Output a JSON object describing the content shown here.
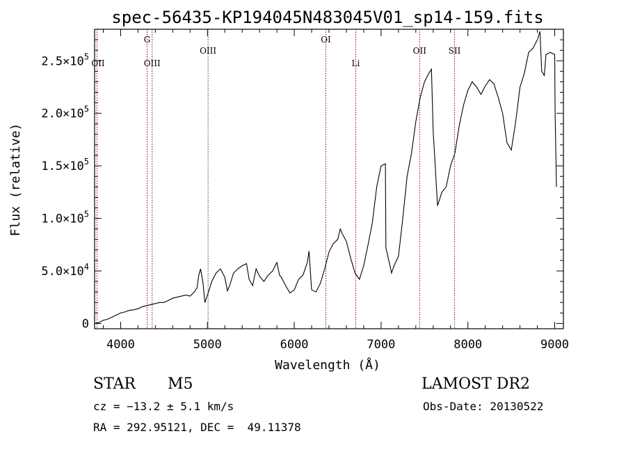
{
  "chart_data": {
    "type": "line",
    "title": "spec-56435-KP194045N483045V01_sp14-159.fits",
    "xlabel": "Wavelength (Å)",
    "ylabel": "Flux (relative)",
    "xlim": [
      3700,
      9100
    ],
    "ylim": [
      -5000,
      280000
    ],
    "x_ticks": [
      4000,
      5000,
      6000,
      7000,
      8000,
      9000
    ],
    "y_ticks": [
      {
        "value": 0,
        "mant": "0",
        "exp": ""
      },
      {
        "value": 50000,
        "mant": "5.0×10",
        "exp": "4"
      },
      {
        "value": 100000,
        "mant": "1.0×10",
        "exp": "5"
      },
      {
        "value": 150000,
        "mant": "1.5×10",
        "exp": "5"
      },
      {
        "value": 200000,
        "mant": "2.0×10",
        "exp": "5"
      },
      {
        "value": 250000,
        "mant": "2.5×10",
        "exp": "5"
      }
    ],
    "grid": false,
    "line_color": "#000000",
    "marker_color": "#8b0000",
    "series": [
      {
        "x": [
          3700,
          3750,
          3800,
          3850,
          3900,
          3950,
          4000,
          4050,
          4100,
          4150,
          4200,
          4250,
          4300,
          4350,
          4400,
          4450,
          4500,
          4550,
          4600,
          4650,
          4700,
          4750,
          4800,
          4850,
          4880,
          4900,
          4920,
          4950,
          4970,
          5000,
          5050,
          5100,
          5150,
          5200,
          5230,
          5260,
          5300,
          5350,
          5400,
          5450,
          5480,
          5520,
          5560,
          5600,
          5650,
          5700,
          5750,
          5800,
          5830,
          5850,
          5900,
          5950,
          6000,
          6050,
          6100,
          6150,
          6170,
          6200,
          6250,
          6300,
          6350,
          6400,
          6450,
          6500,
          6530,
          6550,
          6600,
          6650,
          6700,
          6750,
          6800,
          6850,
          6900,
          6950,
          7000,
          7050,
          7055,
          7100,
          7120,
          7150,
          7200,
          7250,
          7300,
          7350,
          7400,
          7450,
          7500,
          7550,
          7580,
          7600,
          7620,
          7650,
          7700,
          7750,
          7800,
          7850,
          7900,
          7950,
          8000,
          8050,
          8100,
          8150,
          8200,
          8250,
          8300,
          8350,
          8400,
          8450,
          8500,
          8550,
          8600,
          8650,
          8700,
          8750,
          8800,
          8830,
          8850,
          8880,
          8900,
          8950,
          9000,
          9005,
          9020
        ],
        "y": [
          0,
          1000,
          3000,
          4000,
          6000,
          8000,
          10000,
          11000,
          12500,
          13000,
          14000,
          16000,
          17000,
          18000,
          19000,
          20000,
          20000,
          22000,
          24000,
          25000,
          26000,
          27000,
          26000,
          30000,
          34000,
          46000,
          52000,
          38000,
          20000,
          27000,
          40000,
          48000,
          52000,
          44000,
          31000,
          37000,
          48000,
          52000,
          55000,
          57000,
          42000,
          36000,
          52000,
          45000,
          40000,
          46000,
          50000,
          58000,
          46000,
          44000,
          36000,
          29000,
          32000,
          42000,
          46000,
          58000,
          69000,
          32000,
          30000,
          38000,
          52000,
          68000,
          76000,
          80000,
          90000,
          86000,
          78000,
          62000,
          48000,
          42000,
          55000,
          75000,
          96000,
          130000,
          150000,
          152000,
          72000,
          56000,
          48000,
          55000,
          64000,
          100000,
          140000,
          162000,
          192000,
          215000,
          230000,
          238000,
          242000,
          182000,
          155000,
          112000,
          125000,
          130000,
          150000,
          162000,
          188000,
          208000,
          222000,
          230000,
          225000,
          218000,
          226000,
          232000,
          228000,
          215000,
          200000,
          172000,
          165000,
          192000,
          225000,
          238000,
          258000,
          262000,
          270000,
          278000,
          240000,
          236000,
          256000,
          258000,
          256000,
          200000,
          130000
        ]
      }
    ],
    "lines": [
      {
        "label": "G",
        "x": 4305,
        "row": "top"
      },
      {
        "label": "OIII",
        "x": 4363,
        "row": "mid"
      },
      {
        "label": "OIII",
        "x": 5007,
        "row": "upper"
      },
      {
        "label": "OI",
        "x": 6364,
        "row": "top"
      },
      {
        "label": "Li",
        "x": 6708,
        "row": "mid"
      },
      {
        "label": "OII",
        "x": 7444,
        "row": "upper"
      },
      {
        "label": "SII",
        "x": 7846,
        "row": "upper"
      },
      {
        "label": "OII",
        "x": 3727,
        "row": "mid"
      }
    ]
  },
  "info": {
    "object_class": "STAR",
    "subclass": "M5",
    "survey": "LAMOST DR2",
    "cz": "cz = −13.2 ± 5.1 km/s",
    "obs_date": "Obs-Date: 20130522",
    "coords": "RA = 292.95121, DEC =  49.11378"
  }
}
